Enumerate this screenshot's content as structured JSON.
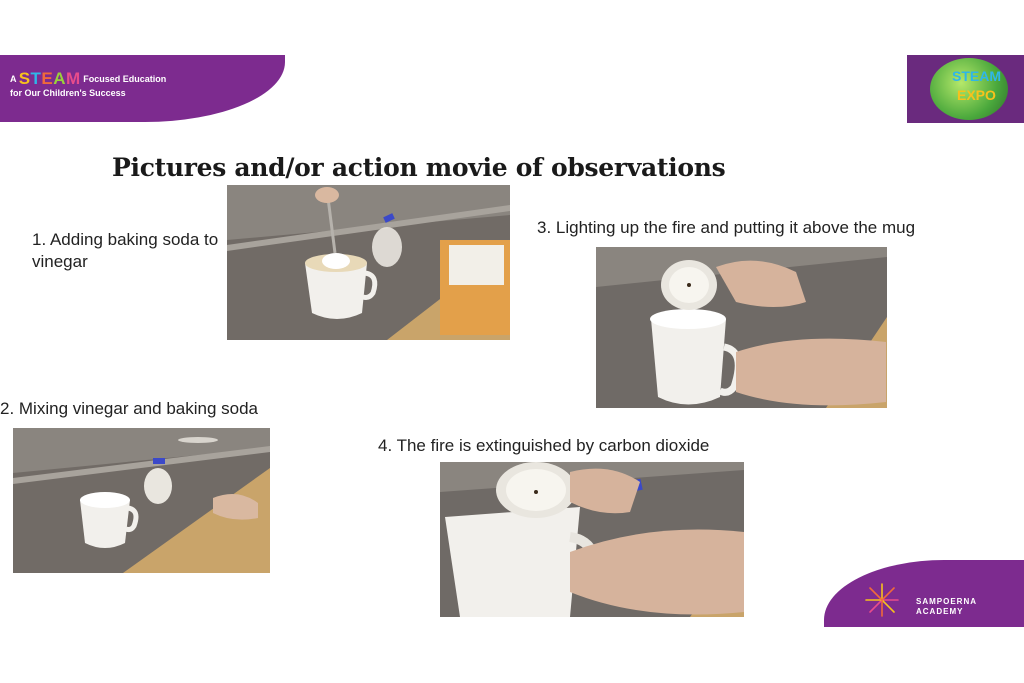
{
  "header": {
    "tagline_prefix": "A",
    "tagline_brand_letters": [
      "S",
      "T",
      "E",
      "A",
      "M"
    ],
    "tagline_line1_rest": "Focused Education",
    "tagline_line2": "for Our Children's Success",
    "expo_logo_line1": "STEAM",
    "expo_logo_line2": "EXPO"
  },
  "title": "Pictures and/or action movie of observations",
  "steps": [
    {
      "caption": "1. Adding baking soda to vinegar"
    },
    {
      "caption": "2. Mixing vinegar and baking soda"
    },
    {
      "caption": "3. Lighting up the fire and putting it above the mug"
    },
    {
      "caption": "4. The fire is extinguished by carbon dioxide"
    }
  ],
  "footer": {
    "academy_line1": "SAMPOERNA",
    "academy_line2": "ACADEMY"
  },
  "colors": {
    "brand_purple": "#7d2b8f",
    "table_wood": "#c9a46a",
    "table_gray": "#6f6a66",
    "mug_white": "#f2f0ec"
  }
}
